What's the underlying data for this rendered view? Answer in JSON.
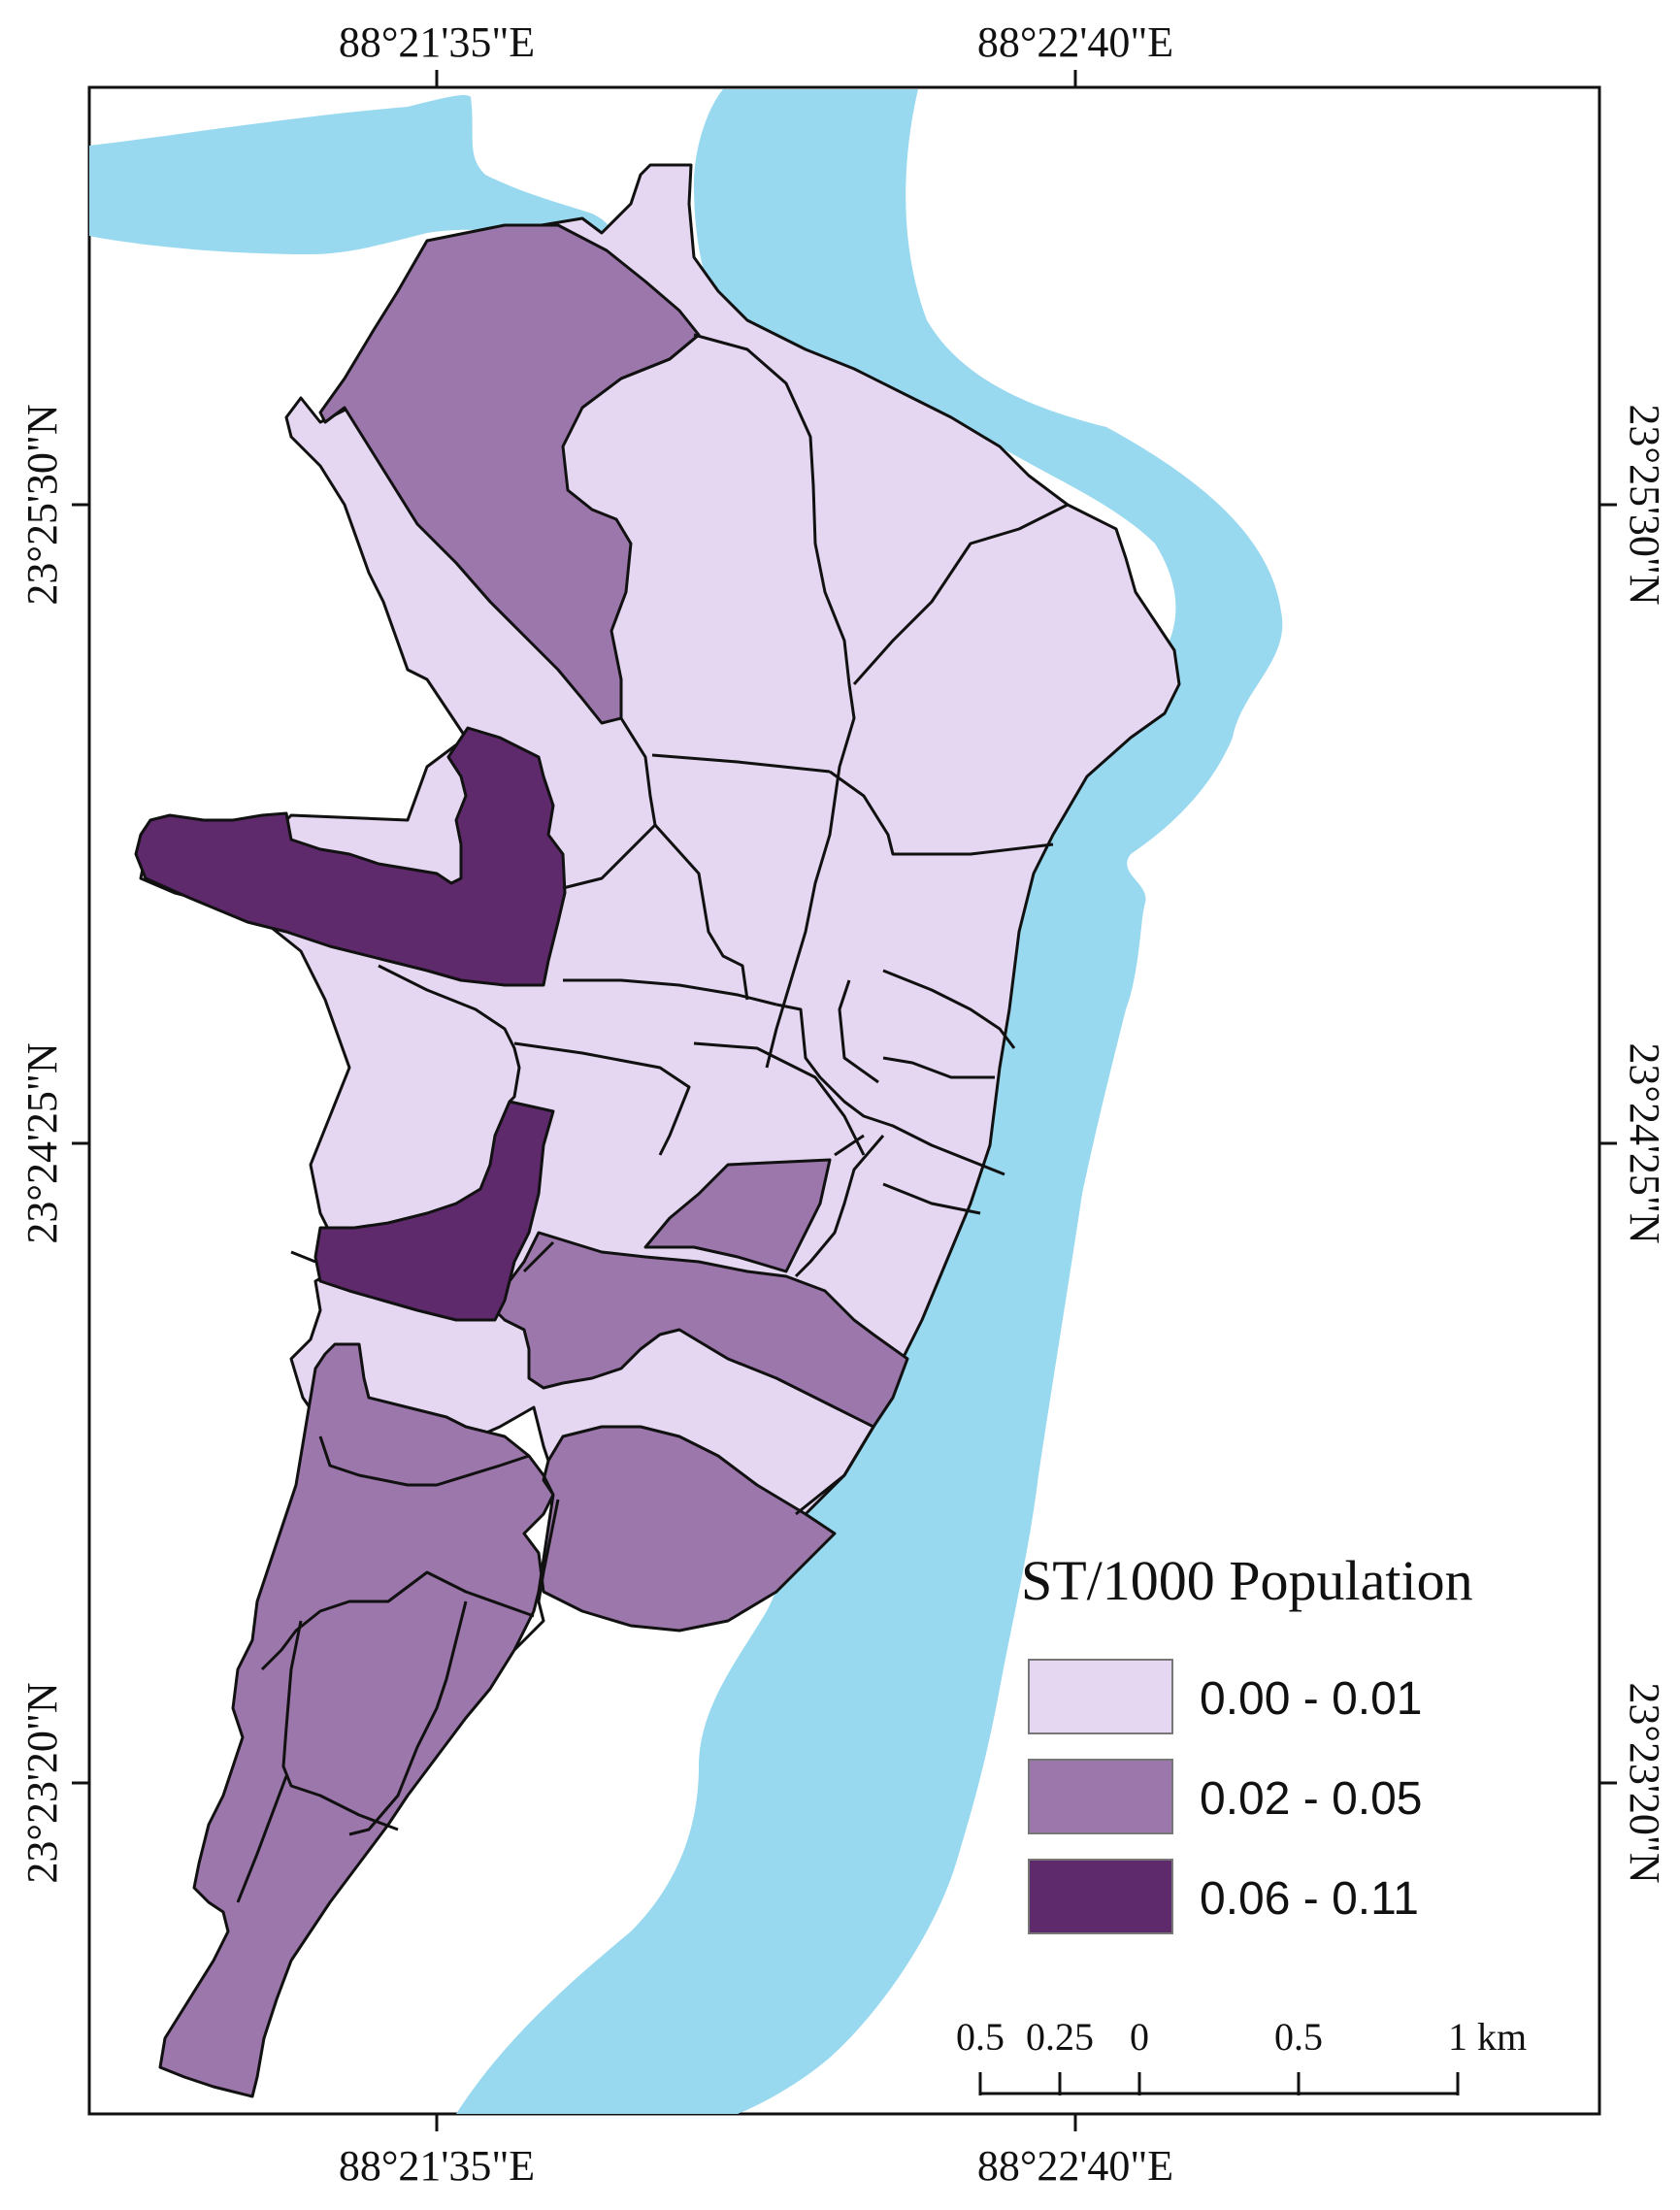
{
  "map": {
    "legend_title": "ST/1000 Population",
    "classes": [
      {
        "label": "0.00 - 0.01",
        "color": "#e5d7f1"
      },
      {
        "label": "0.02 - 0.05",
        "color": "#9c77ab"
      },
      {
        "label": "0.06 - 0.11",
        "color": "#5e2a6c"
      }
    ],
    "water_color": "#99d9f0",
    "graticule": {
      "top": [
        "88°21'35\"E",
        "88°22'40\"E"
      ],
      "bottom": [
        "88°21'35\"E",
        "88°22'40\"E"
      ],
      "left": [
        "23°25'30\"N",
        "23°24'25\"N",
        "23°23'20\"N"
      ],
      "right": [
        "23°25'30\"N",
        "23°24'25\"N",
        "23°23'20\"N"
      ]
    },
    "scale_bar": {
      "labels": [
        "0.5",
        "0.25",
        "0",
        "0.5",
        "1 km"
      ]
    }
  }
}
